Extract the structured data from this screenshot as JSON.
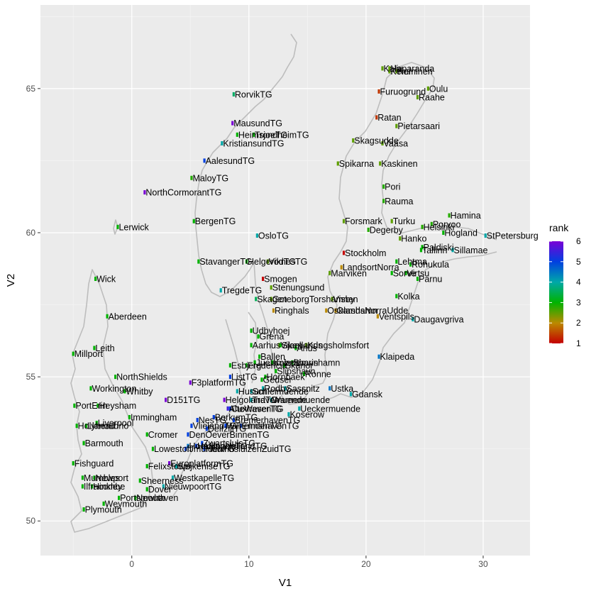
{
  "chart_data": {
    "type": "scatter",
    "title": "",
    "xlabel": "V1",
    "ylabel": "V2",
    "xlim": [
      -7.8,
      34.0
    ],
    "ylim": [
      48.8,
      67.9
    ],
    "x_ticks": [
      0,
      10,
      20,
      30
    ],
    "y_ticks": [
      50,
      55,
      60,
      65
    ],
    "grid": true,
    "background": "#ebebeb",
    "legend": {
      "title": "rank",
      "placement": "right",
      "min": 1,
      "max": 6,
      "ticks": [
        1,
        2,
        3,
        4,
        5,
        6
      ],
      "colors": [
        "#c40000",
        "#bb8a00",
        "#00b300",
        "#00a8a8",
        "#0040e0",
        "#7a00d6"
      ]
    },
    "points": [
      {
        "x": 8.7,
        "y": 64.8,
        "label": "RorvikTG",
        "rank": 3.6
      },
      {
        "x": 8.6,
        "y": 63.8,
        "label": "MausundTG",
        "rank": 6
      },
      {
        "x": 9.0,
        "y": 63.4,
        "label": "HeimsjoeTG",
        "rank": 3
      },
      {
        "x": 10.4,
        "y": 63.4,
        "label": "TrondheimTG",
        "rank": 3
      },
      {
        "x": 7.7,
        "y": 63.1,
        "label": "KristiansundTG",
        "rank": 4
      },
      {
        "x": 6.2,
        "y": 62.5,
        "label": "AalesundTG",
        "rank": 5
      },
      {
        "x": 5.1,
        "y": 61.9,
        "label": "MaloyTG",
        "rank": 2.8
      },
      {
        "x": 1.1,
        "y": 61.4,
        "label": "NorthCormorantTG",
        "rank": 6
      },
      {
        "x": 5.3,
        "y": 60.4,
        "label": "BergenTG",
        "rank": 3
      },
      {
        "x": -1.2,
        "y": 60.2,
        "label": "Lerwick",
        "rank": 3
      },
      {
        "x": 10.7,
        "y": 59.9,
        "label": "OsloTG",
        "rank": 4
      },
      {
        "x": 5.7,
        "y": 59.0,
        "label": "StavangerTG",
        "rank": 3
      },
      {
        "x": 9.8,
        "y": 59.0,
        "label": "HelgerodTG",
        "rank": 3
      },
      {
        "x": 11.6,
        "y": 59.0,
        "label": "ViknesTG",
        "rank": 2.5
      },
      {
        "x": 11.2,
        "y": 58.4,
        "label": "Smogen",
        "rank": 1
      },
      {
        "x": 11.9,
        "y": 58.1,
        "label": "Stenungsund",
        "rank": 2.5
      },
      {
        "x": -3.1,
        "y": 58.4,
        "label": "Wick",
        "rank": 3
      },
      {
        "x": 7.6,
        "y": 58.0,
        "label": "TregdeTG",
        "rank": 4
      },
      {
        "x": 10.6,
        "y": 57.7,
        "label": "Skagen",
        "rank": 3.5
      },
      {
        "x": 11.9,
        "y": 57.7,
        "label": "GoteborgTorshamnen",
        "rank": 2.5
      },
      {
        "x": 12.1,
        "y": 57.3,
        "label": "Ringhals",
        "rank": 2
      },
      {
        "x": 16.6,
        "y": 57.3,
        "label": "Oskarshamn",
        "rank": 2
      },
      {
        "x": 17.1,
        "y": 57.7,
        "label": "Visby",
        "rank": 2.5
      },
      {
        "x": 17.4,
        "y": 57.3,
        "label": "OlandsNorraUdde",
        "rank": 2
      },
      {
        "x": 21.0,
        "y": 57.1,
        "label": "Ventspils",
        "rank": 2
      },
      {
        "x": -2.1,
        "y": 57.1,
        "label": "Aberdeen",
        "rank": 3
      },
      {
        "x": 10.2,
        "y": 56.6,
        "label": "Udbyhoej",
        "rank": 3
      },
      {
        "x": 10.8,
        "y": 56.4,
        "label": "Grena",
        "rank": 3
      },
      {
        "x": 10.2,
        "y": 56.1,
        "label": "Aarhus",
        "rank": 3
      },
      {
        "x": 12.6,
        "y": 56.1,
        "label": "Viken",
        "rank": 2.5
      },
      {
        "x": 14.9,
        "y": 56.1,
        "label": "Kungsholmsfort",
        "rank": 2.5
      },
      {
        "x": 12.7,
        "y": 56.1,
        "label": "Sjaellands",
        "rank": 3
      },
      {
        "x": 14.0,
        "y": 56.0,
        "label": "Ahus",
        "rank": 3
      },
      {
        "x": 10.9,
        "y": 55.7,
        "label": "Ballen",
        "rank": 3
      },
      {
        "x": 10.5,
        "y": 55.5,
        "label": "Juelsminde",
        "rank": 3
      },
      {
        "x": 12.0,
        "y": 55.5,
        "label": "Kobenhavn",
        "rank": 3
      },
      {
        "x": 13.0,
        "y": 55.4,
        "label": "Skanor",
        "rank": 3
      },
      {
        "x": 12.3,
        "y": 55.2,
        "label": "Slipshavn",
        "rank": 3
      },
      {
        "x": 13.7,
        "y": 55.5,
        "label": "Simrishamn",
        "rank": 3
      },
      {
        "x": 8.4,
        "y": 55.4,
        "label": "Esbjerg",
        "rank": 3
      },
      {
        "x": 9.8,
        "y": 55.4,
        "label": "Fredericia",
        "rank": 3
      },
      {
        "x": 14.7,
        "y": 55.1,
        "label": "Ronne",
        "rank": 3
      },
      {
        "x": 8.4,
        "y": 55.0,
        "label": "ListTG",
        "rank": 5
      },
      {
        "x": 11.1,
        "y": 54.9,
        "label": "Gedser",
        "rank": 3
      },
      {
        "x": 11.4,
        "y": 55.0,
        "label": "Hornbaek",
        "rank": 3
      },
      {
        "x": 21.1,
        "y": 55.7,
        "label": "Klaipeda",
        "rank": 4.5
      },
      {
        "x": 16.9,
        "y": 54.6,
        "label": "Ustka",
        "rank": 4.5
      },
      {
        "x": 18.7,
        "y": 54.4,
        "label": "Gdansk",
        "rank": 4
      },
      {
        "x": 10.2,
        "y": 54.5,
        "label": "Schleimuende",
        "rank": 4
      },
      {
        "x": 11.2,
        "y": 54.6,
        "label": "Rodby",
        "rank": 4
      },
      {
        "x": 13.1,
        "y": 54.6,
        "label": "Sassnitz",
        "rank": 4
      },
      {
        "x": 9.0,
        "y": 54.5,
        "label": "Husum",
        "rank": 4
      },
      {
        "x": 10.2,
        "y": 54.2,
        "label": "Travemuende",
        "rank": 4
      },
      {
        "x": 11.9,
        "y": 54.2,
        "label": "Warnemuende",
        "rank": 4
      },
      {
        "x": 13.4,
        "y": 53.7,
        "label": "Koserow",
        "rank": 4
      },
      {
        "x": 14.3,
        "y": 53.9,
        "label": "Ueckermuende",
        "rank": 4
      },
      {
        "x": 7.9,
        "y": 54.2,
        "label": "HelgolandTG",
        "rank": 6
      },
      {
        "x": 8.2,
        "y": 53.9,
        "label": "AlteWeserTG",
        "rank": 5.5
      },
      {
        "x": 8.4,
        "y": 53.9,
        "label": "CuxhavenTG",
        "rank": 5
      },
      {
        "x": 7.0,
        "y": 53.6,
        "label": "BorkumTG",
        "rank": 5
      },
      {
        "x": 8.7,
        "y": 53.5,
        "label": "BremerhavenTG",
        "rank": 5
      },
      {
        "x": 8.0,
        "y": 53.3,
        "label": "WilhelmshavenTG",
        "rank": 5
      },
      {
        "x": 9.3,
        "y": 53.3,
        "label": "EmdenTG",
        "rank": 5
      },
      {
        "x": 5.6,
        "y": 53.5,
        "label": "NesTG",
        "rank": 5
      },
      {
        "x": 5.1,
        "y": 53.3,
        "label": "VlielandTG",
        "rank": 5
      },
      {
        "x": 4.8,
        "y": 53.0,
        "label": "DenOeverBinnenTG",
        "rank": 5
      },
      {
        "x": 6.4,
        "y": 53.2,
        "label": "DelfzijlTG",
        "rank": 5
      },
      {
        "x": 6.0,
        "y": 52.7,
        "label": "ZwartslulsTG",
        "rank": 5
      },
      {
        "x": 5.5,
        "y": 52.6,
        "label": "HarlingenTG",
        "rank": 5
      },
      {
        "x": 4.8,
        "y": 52.6,
        "label": "HoekVanHollandTG",
        "rank": 4.5
      },
      {
        "x": 4.6,
        "y": 52.5,
        "label": "IJmuidenTG",
        "rank": 5
      },
      {
        "x": 6.2,
        "y": 52.5,
        "label": "HoutribsluizenZuidTG",
        "rank": 5
      },
      {
        "x": 5.0,
        "y": 54.8,
        "label": "F3platformTG",
        "rank": 6
      },
      {
        "x": 2.9,
        "y": 54.2,
        "label": "D151TG",
        "rank": 6
      },
      {
        "x": -1.4,
        "y": 55.0,
        "label": "NorthShields",
        "rank": 3
      },
      {
        "x": -3.5,
        "y": 54.6,
        "label": "Workington",
        "rank": 3
      },
      {
        "x": -0.6,
        "y": 54.5,
        "label": "Whitby",
        "rank": 3
      },
      {
        "x": -4.9,
        "y": 54.0,
        "label": "PortErin",
        "rank": 3
      },
      {
        "x": -2.9,
        "y": 54.0,
        "label": "Heysham",
        "rank": 3
      },
      {
        "x": -0.2,
        "y": 53.6,
        "label": "Immingham",
        "rank": 3
      },
      {
        "x": -4.7,
        "y": 53.3,
        "label": "Holyhead",
        "rank": 3
      },
      {
        "x": -3.9,
        "y": 53.3,
        "label": "Llandudno",
        "rank": 3
      },
      {
        "x": -3.0,
        "y": 53.4,
        "label": "Liverpool",
        "rank": 3
      },
      {
        "x": 1.3,
        "y": 53.0,
        "label": "Cromer",
        "rank": 3
      },
      {
        "x": -4.1,
        "y": 52.7,
        "label": "Barmouth",
        "rank": 3
      },
      {
        "x": 1.8,
        "y": 52.5,
        "label": "Lowestoft",
        "rank": 3
      },
      {
        "x": -5.0,
        "y": 52.0,
        "label": "Fishguard",
        "rank": 3
      },
      {
        "x": 1.3,
        "y": 51.9,
        "label": "Felixstowe",
        "rank": 3
      },
      {
        "x": 3.2,
        "y": 52.0,
        "label": "EuroplatformTG",
        "rank": 6
      },
      {
        "x": 3.8,
        "y": 51.9,
        "label": "SpijkeniseTG",
        "rank": 4
      },
      {
        "x": -4.2,
        "y": 51.5,
        "label": "Mumbles",
        "rank": 3
      },
      {
        "x": -3.2,
        "y": 51.5,
        "label": "Newport",
        "rank": 3
      },
      {
        "x": 3.5,
        "y": 51.5,
        "label": "WestkapelleTG",
        "rank": 4
      },
      {
        "x": 0.7,
        "y": 51.4,
        "label": "Sheerness",
        "rank": 3
      },
      {
        "x": -4.2,
        "y": 51.2,
        "label": "Ilfracombe",
        "rank": 3
      },
      {
        "x": -3.4,
        "y": 51.2,
        "label": "Hinkley",
        "rank": 3
      },
      {
        "x": 1.3,
        "y": 51.1,
        "label": "Dover",
        "rank": 3
      },
      {
        "x": 2.7,
        "y": 51.2,
        "label": "NieuwpoortTG",
        "rank": 4
      },
      {
        "x": -1.1,
        "y": 50.8,
        "label": "Portsmouth",
        "rank": 3
      },
      {
        "x": 0.3,
        "y": 50.8,
        "label": "Newhaven",
        "rank": 3
      },
      {
        "x": -2.4,
        "y": 50.6,
        "label": "Weymouth",
        "rank": 3
      },
      {
        "x": -4.1,
        "y": 50.4,
        "label": "Plymouth",
        "rank": 3
      },
      {
        "x": -5.0,
        "y": 55.8,
        "label": "Millport",
        "rank": 3
      },
      {
        "x": -3.2,
        "y": 56.0,
        "label": "Leith",
        "rank": 3
      },
      {
        "x": 21.4,
        "y": 65.7,
        "label": "Kalix",
        "rank": 2.5
      },
      {
        "x": 22.0,
        "y": 65.7,
        "label": "Haparanda",
        "rank": 2.5
      },
      {
        "x": 22.0,
        "y": 65.6,
        "label": "Kemi",
        "rank": 2.5
      },
      {
        "x": 22.6,
        "y": 65.6,
        "label": "Keminen",
        "rank": 2.5
      },
      {
        "x": 21.1,
        "y": 64.9,
        "label": "Furuogrund",
        "rank": 1.4
      },
      {
        "x": 25.3,
        "y": 65.0,
        "label": "Oulu",
        "rank": 2.5
      },
      {
        "x": 24.4,
        "y": 64.7,
        "label": "Raahe",
        "rank": 2.5
      },
      {
        "x": 20.9,
        "y": 64.0,
        "label": "Ratan",
        "rank": 1.4
      },
      {
        "x": 22.6,
        "y": 63.7,
        "label": "Pietarsaari",
        "rank": 2.5
      },
      {
        "x": 18.9,
        "y": 63.2,
        "label": "Skagsudde",
        "rank": 2.5
      },
      {
        "x": 21.4,
        "y": 63.1,
        "label": "Vaasa",
        "rank": 2.5
      },
      {
        "x": 17.6,
        "y": 62.4,
        "label": "Spikarna",
        "rank": 2.5
      },
      {
        "x": 21.2,
        "y": 62.4,
        "label": "Kaskinen",
        "rank": 2.5
      },
      {
        "x": 21.5,
        "y": 61.6,
        "label": "Pori",
        "rank": 2.8
      },
      {
        "x": 21.5,
        "y": 61.1,
        "label": "Rauma",
        "rank": 2.8
      },
      {
        "x": 18.1,
        "y": 60.4,
        "label": "Forsmark",
        "rank": 2.5
      },
      {
        "x": 22.2,
        "y": 60.4,
        "label": "Turku",
        "rank": 2.5
      },
      {
        "x": 20.2,
        "y": 60.1,
        "label": "Degerby",
        "rank": 2.8
      },
      {
        "x": 22.9,
        "y": 59.8,
        "label": "Hanko",
        "rank": 2.5
      },
      {
        "x": 24.8,
        "y": 60.2,
        "label": "Helsinki",
        "rank": 2.8
      },
      {
        "x": 25.6,
        "y": 60.3,
        "label": "Porvoo",
        "rank": 2.8
      },
      {
        "x": 27.1,
        "y": 60.6,
        "label": "Hamina",
        "rank": 2.8
      },
      {
        "x": 26.6,
        "y": 60.0,
        "label": "Hogland",
        "rank": 3
      },
      {
        "x": 30.2,
        "y": 59.9,
        "label": "StPetersburg",
        "rank": 4
      },
      {
        "x": 24.8,
        "y": 59.5,
        "label": "Paldiski",
        "rank": 3
      },
      {
        "x": 24.7,
        "y": 59.4,
        "label": "Tallinn",
        "rank": 3
      },
      {
        "x": 27.4,
        "y": 59.4,
        "label": "Sillamae",
        "rank": 4
      },
      {
        "x": 22.6,
        "y": 59.0,
        "label": "Lehtma",
        "rank": 3
      },
      {
        "x": 23.8,
        "y": 58.9,
        "label": "Rohukula",
        "rank": 3
      },
      {
        "x": 22.2,
        "y": 58.6,
        "label": "Sorve",
        "rank": 3
      },
      {
        "x": 23.4,
        "y": 58.6,
        "label": "Virtsu",
        "rank": 3
      },
      {
        "x": 24.4,
        "y": 58.4,
        "label": "Parnu",
        "rank": 3
      },
      {
        "x": 18.1,
        "y": 59.3,
        "label": "Stockholm",
        "rank": 1
      },
      {
        "x": 17.9,
        "y": 58.8,
        "label": "LandsortNorra",
        "rank": 2
      },
      {
        "x": 16.9,
        "y": 58.6,
        "label": "Marviken",
        "rank": 2.5
      },
      {
        "x": 22.6,
        "y": 57.8,
        "label": "Kolka",
        "rank": 3
      },
      {
        "x": 24.0,
        "y": 57.0,
        "label": "Daugavgriva",
        "rank": 4
      }
    ]
  }
}
